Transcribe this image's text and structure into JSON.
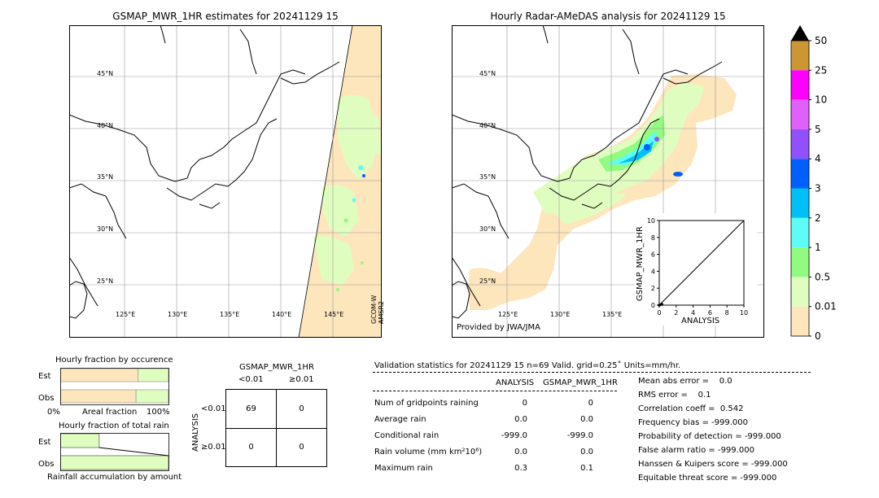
{
  "colors": {
    "c0": "#fde5bc",
    "c001": "#e0fdc0",
    "c05": "#90fb80",
    "c1": "#5efcf6",
    "c2": "#00c0f8",
    "c3": "#0060ff",
    "c4": "#9050fc",
    "c5": "#e060fc",
    "c10": "#ff00ff",
    "c25": "#cc9632",
    "c50": "#000000"
  },
  "left_map": {
    "title": "GSMAP_MWR_1HR estimates for 20241129 15",
    "sensor_label_1": "GCOM-W",
    "sensor_label_2": "AMSR2",
    "lat_labels": [
      "45°N",
      "40°N",
      "35°N",
      "30°N",
      "25°N"
    ],
    "lon_labels": [
      "125°E",
      "130°E",
      "135°E",
      "140°E",
      "145°E"
    ]
  },
  "right_map": {
    "title": "Hourly Radar-AMeDAS analysis for 20241129 15",
    "credit": "Provided by JWA/JMA",
    "lat_labels": [
      "45°N",
      "40°N",
      "35°N",
      "30°N",
      "25°N"
    ],
    "lon_labels": [
      "125°E",
      "130°E",
      "135°E"
    ]
  },
  "colorbar": {
    "labels": [
      "50",
      "25",
      "10",
      "5",
      "4",
      "3",
      "2",
      "1",
      "0.5",
      "0.01",
      "0"
    ]
  },
  "chart_data": [
    {
      "type": "scatter",
      "title": "",
      "xlabel": "ANALYSIS",
      "ylabel": "GSMAP_MWR_1HR",
      "xlim": [
        0,
        10
      ],
      "ylim": [
        0,
        10
      ],
      "xticks": [
        "0",
        "2",
        "4",
        "6",
        "8",
        "10"
      ],
      "yticks": [
        "0",
        "2",
        "4",
        "6",
        "8",
        "10"
      ],
      "points": [
        {
          "x": 0.0,
          "y": 0.0
        },
        {
          "x": 0.3,
          "y": 0.1
        }
      ],
      "diagonal": true
    },
    {
      "type": "bar",
      "title": "Hourly fraction by occurence",
      "categories": [
        "Est",
        "Obs"
      ],
      "series": [
        {
          "values": [
            0.72,
            0.7
          ]
        },
        {
          "values": [
            0.28,
            0.3
          ]
        }
      ],
      "xlabel": "Areal fraction",
      "xtick_left": "0%",
      "xtick_right": "100%"
    },
    {
      "type": "bar",
      "title": "Hourly fraction of total rain",
      "categories": [
        "Est",
        "Obs"
      ],
      "values": [
        0.36,
        1.0
      ],
      "xlabel": "Rainfall accumulation by amount"
    }
  ],
  "contingency": {
    "title": "GSMAP_MWR_1HR",
    "col_labels": [
      "<0.01",
      "≥0.01"
    ],
    "row_axis_label": "ANALYSIS",
    "row_labels": [
      "<0.01",
      "≥0.01"
    ],
    "cells": [
      [
        "69",
        "0"
      ],
      [
        "0",
        "0"
      ]
    ]
  },
  "validation": {
    "header": "Validation statistics for 20241129 15  n=69 Valid. grid=0.25˚ Units=mm/hr.",
    "col1": "ANALYSIS",
    "col2": "GSMAP_MWR_1HR",
    "rows": [
      {
        "label": "Num of gridpoints raining",
        "a": "0",
        "b": "0"
      },
      {
        "label": "Average rain",
        "a": "0.0",
        "b": "0.0"
      },
      {
        "label": "Conditional rain",
        "a": "-999.0",
        "b": "-999.0"
      },
      {
        "label": "Rain volume (mm km²10⁶)",
        "a": "0.0",
        "b": "0.0"
      },
      {
        "label": "Maximum rain",
        "a": "0.3",
        "b": "0.1"
      }
    ],
    "scores": [
      "Mean abs error =    0.0",
      "RMS error =    0.1",
      "Correlation coeff =  0.542",
      "Frequency bias = -999.000",
      "Probability of detection = -999.000",
      "False alarm ratio = -999.000",
      "Hanssen & Kuipers score = -999.000",
      "Equitable threat score = -999.000"
    ]
  }
}
